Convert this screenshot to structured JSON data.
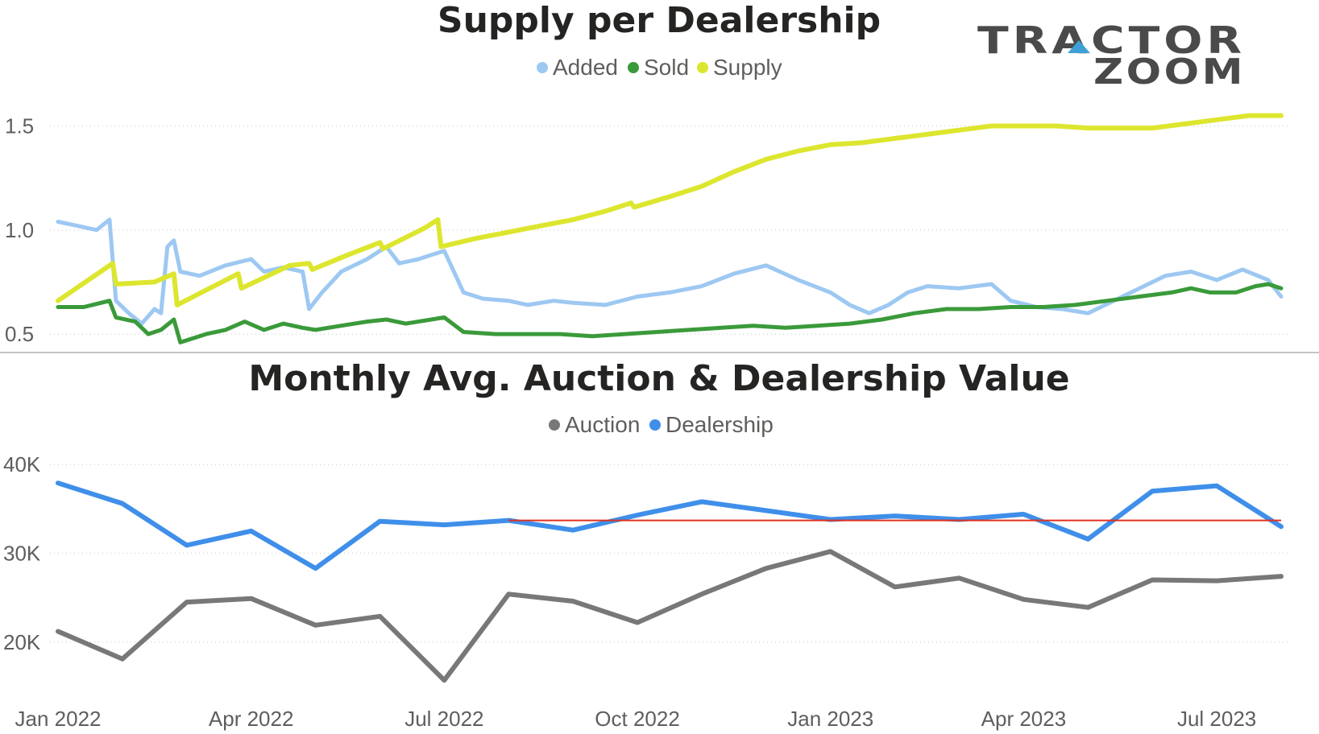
{
  "colors": {
    "added": "#9DC8F2",
    "sold": "#3A9A3A",
    "supply": "#DDE62E",
    "auction": "#787878",
    "dealership": "#3F8FEA",
    "reference": "#E0301E",
    "logo_text": "#4a4a4a",
    "logo_accent": "#3FA0D6"
  },
  "logo": {
    "line1": "TRACTOR",
    "line2": "ZOOM"
  },
  "x_axis": {
    "ticks": [
      "Jan 2022",
      "Apr 2022",
      "Jul 2022",
      "Oct 2022",
      "Jan 2023",
      "Apr 2023",
      "Jul 2023"
    ]
  },
  "chart_data": [
    {
      "type": "line",
      "title": "Supply per Dealership",
      "legend_position": "top-center",
      "grid": true,
      "y_ticks": [
        "1.5",
        "1.0",
        "0.5"
      ],
      "ylim": [
        0.45,
        1.68
      ],
      "x_index_range": [
        0,
        19
      ],
      "series": [
        {
          "name": "Added",
          "points": [
            [
              0,
              1.04
            ],
            [
              0.3,
              1.02
            ],
            [
              0.6,
              1.0
            ],
            [
              0.8,
              1.05
            ],
            [
              0.9,
              0.66
            ],
            [
              1.1,
              0.6
            ],
            [
              1.3,
              0.55
            ],
            [
              1.5,
              0.62
            ],
            [
              1.6,
              0.6
            ],
            [
              1.7,
              0.92
            ],
            [
              1.8,
              0.95
            ],
            [
              1.9,
              0.8
            ],
            [
              2.2,
              0.78
            ],
            [
              2.6,
              0.83
            ],
            [
              3.0,
              0.86
            ],
            [
              3.2,
              0.8
            ],
            [
              3.5,
              0.82
            ],
            [
              3.8,
              0.8
            ],
            [
              3.9,
              0.62
            ],
            [
              4.1,
              0.7
            ],
            [
              4.4,
              0.8
            ],
            [
              4.8,
              0.86
            ],
            [
              5.1,
              0.92
            ],
            [
              5.3,
              0.84
            ],
            [
              5.6,
              0.86
            ],
            [
              5.8,
              0.88
            ],
            [
              6.0,
              0.9
            ],
            [
              6.3,
              0.7
            ],
            [
              6.6,
              0.67
            ],
            [
              7.0,
              0.66
            ],
            [
              7.3,
              0.64
            ],
            [
              7.7,
              0.66
            ],
            [
              8.0,
              0.65
            ],
            [
              8.5,
              0.64
            ],
            [
              9.0,
              0.68
            ],
            [
              9.5,
              0.7
            ],
            [
              10.0,
              0.73
            ],
            [
              10.5,
              0.79
            ],
            [
              11.0,
              0.83
            ],
            [
              11.5,
              0.76
            ],
            [
              12.0,
              0.7
            ],
            [
              12.3,
              0.64
            ],
            [
              12.6,
              0.6
            ],
            [
              12.9,
              0.64
            ],
            [
              13.2,
              0.7
            ],
            [
              13.5,
              0.73
            ],
            [
              14.0,
              0.72
            ],
            [
              14.5,
              0.74
            ],
            [
              14.8,
              0.66
            ],
            [
              15.2,
              0.63
            ],
            [
              15.6,
              0.62
            ],
            [
              16.0,
              0.6
            ],
            [
              16.4,
              0.66
            ],
            [
              16.8,
              0.72
            ],
            [
              17.2,
              0.78
            ],
            [
              17.6,
              0.8
            ],
            [
              18.0,
              0.76
            ],
            [
              18.4,
              0.81
            ],
            [
              18.8,
              0.76
            ],
            [
              19.0,
              0.68
            ]
          ]
        },
        {
          "name": "Sold",
          "points": [
            [
              0,
              0.63
            ],
            [
              0.4,
              0.63
            ],
            [
              0.8,
              0.66
            ],
            [
              0.9,
              0.58
            ],
            [
              1.2,
              0.56
            ],
            [
              1.4,
              0.5
            ],
            [
              1.6,
              0.52
            ],
            [
              1.8,
              0.57
            ],
            [
              1.9,
              0.46
            ],
            [
              2.3,
              0.5
            ],
            [
              2.6,
              0.52
            ],
            [
              2.9,
              0.56
            ],
            [
              3.2,
              0.52
            ],
            [
              3.5,
              0.55
            ],
            [
              3.8,
              0.53
            ],
            [
              4.0,
              0.52
            ],
            [
              4.4,
              0.54
            ],
            [
              4.8,
              0.56
            ],
            [
              5.1,
              0.57
            ],
            [
              5.4,
              0.55
            ],
            [
              5.8,
              0.57
            ],
            [
              6.0,
              0.58
            ],
            [
              6.3,
              0.51
            ],
            [
              6.8,
              0.5
            ],
            [
              7.3,
              0.5
            ],
            [
              7.8,
              0.5
            ],
            [
              8.3,
              0.49
            ],
            [
              8.8,
              0.5
            ],
            [
              9.3,
              0.51
            ],
            [
              9.8,
              0.52
            ],
            [
              10.3,
              0.53
            ],
            [
              10.8,
              0.54
            ],
            [
              11.3,
              0.53
            ],
            [
              11.8,
              0.54
            ],
            [
              12.3,
              0.55
            ],
            [
              12.8,
              0.57
            ],
            [
              13.3,
              0.6
            ],
            [
              13.8,
              0.62
            ],
            [
              14.3,
              0.62
            ],
            [
              14.8,
              0.63
            ],
            [
              15.3,
              0.63
            ],
            [
              15.8,
              0.64
            ],
            [
              16.3,
              0.66
            ],
            [
              16.8,
              0.68
            ],
            [
              17.3,
              0.7
            ],
            [
              17.6,
              0.72
            ],
            [
              17.9,
              0.7
            ],
            [
              18.3,
              0.7
            ],
            [
              18.6,
              0.73
            ],
            [
              18.8,
              0.74
            ],
            [
              19.0,
              0.72
            ]
          ]
        },
        {
          "name": "Supply",
          "points": [
            [
              0,
              0.66
            ],
            [
              0.85,
              0.84
            ],
            [
              0.9,
              0.74
            ],
            [
              1.5,
              0.75
            ],
            [
              1.8,
              0.79
            ],
            [
              1.85,
              0.64
            ],
            [
              2.8,
              0.79
            ],
            [
              2.85,
              0.72
            ],
            [
              3.6,
              0.83
            ],
            [
              3.9,
              0.84
            ],
            [
              3.95,
              0.81
            ],
            [
              4.5,
              0.88
            ],
            [
              5.0,
              0.94
            ],
            [
              5.05,
              0.91
            ],
            [
              5.7,
              1.01
            ],
            [
              5.9,
              1.05
            ],
            [
              5.95,
              0.92
            ],
            [
              6.5,
              0.96
            ],
            [
              7.0,
              0.99
            ],
            [
              7.5,
              1.02
            ],
            [
              8.0,
              1.05
            ],
            [
              8.5,
              1.09
            ],
            [
              8.9,
              1.13
            ],
            [
              8.95,
              1.11
            ],
            [
              9.5,
              1.16
            ],
            [
              10.0,
              1.21
            ],
            [
              10.5,
              1.28
            ],
            [
              11.0,
              1.34
            ],
            [
              11.5,
              1.38
            ],
            [
              12.0,
              1.41
            ],
            [
              12.5,
              1.42
            ],
            [
              13.0,
              1.44
            ],
            [
              13.5,
              1.46
            ],
            [
              14.0,
              1.48
            ],
            [
              14.5,
              1.5
            ],
            [
              15.0,
              1.5
            ],
            [
              15.5,
              1.5
            ],
            [
              16.0,
              1.49
            ],
            [
              16.5,
              1.49
            ],
            [
              17.0,
              1.49
            ],
            [
              17.5,
              1.51
            ],
            [
              18.0,
              1.53
            ],
            [
              18.5,
              1.55
            ],
            [
              19.0,
              1.55
            ]
          ]
        }
      ]
    },
    {
      "type": "line",
      "title": "Monthly Avg. Auction & Dealership Value",
      "legend_position": "top-center",
      "grid": true,
      "y_ticks": [
        "40K",
        "30K",
        "20K"
      ],
      "ylim": [
        13000,
        42000
      ],
      "reference_line": {
        "value": 33700,
        "from_index": 7,
        "to_index": 19
      },
      "series": [
        {
          "name": "Auction",
          "x_index": [
            0,
            1,
            2,
            3,
            4,
            5,
            6,
            7,
            8,
            9,
            10,
            11,
            12,
            13,
            14,
            15,
            16,
            17,
            18,
            19
          ],
          "values": [
            21200,
            18100,
            24500,
            24900,
            21900,
            22900,
            15700,
            25400,
            24600,
            22200,
            25400,
            28300,
            30200,
            26200,
            27200,
            24800,
            23900,
            27000,
            26900,
            27400
          ]
        },
        {
          "name": "Dealership",
          "x_index": [
            0,
            1,
            2,
            3,
            4,
            5,
            6,
            7,
            8,
            9,
            10,
            11,
            12,
            13,
            14,
            15,
            16,
            17,
            18,
            19
          ],
          "values": [
            37900,
            35600,
            30900,
            32500,
            28300,
            33600,
            33200,
            33700,
            32600,
            34300,
            35800,
            34800,
            33800,
            34200,
            33800,
            34400,
            31600,
            37000,
            37600,
            33000
          ]
        }
      ]
    }
  ]
}
